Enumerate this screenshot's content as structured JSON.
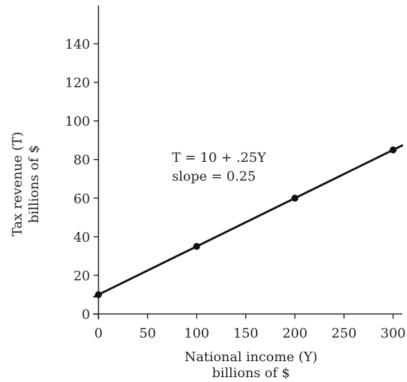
{
  "chart_data": {
    "type": "line",
    "x_ticks": [
      0,
      50,
      100,
      150,
      200,
      250,
      300
    ],
    "y_ticks": [
      0,
      20,
      40,
      60,
      80,
      100,
      120,
      140
    ],
    "xlim": [
      0,
      300
    ],
    "ylim": [
      0,
      140
    ],
    "xlabel_line1": "National income (Y)",
    "xlabel_line2": "billions of $",
    "ylabel_line1": "Tax revenue (T)",
    "ylabel_line2": "billions of $",
    "series": [
      {
        "x": [
          0,
          100,
          200,
          300
        ],
        "y": [
          10,
          35,
          60,
          85
        ]
      }
    ],
    "line_extent_x": [
      -5,
      310
    ],
    "annotation_equation": "T = 10 + .25Y",
    "annotation_slope": "slope = 0.25",
    "grid": false,
    "line_color": "#111111"
  }
}
